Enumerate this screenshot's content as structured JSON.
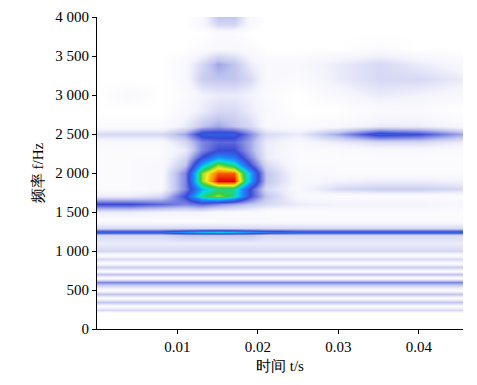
{
  "chart_data": {
    "type": "heatmap",
    "x_label": "时间 t/s",
    "y_label": "频率 f/Hz",
    "xlim": [
      0,
      0.0455
    ],
    "ylim": [
      0,
      4000
    ],
    "xticks": [
      0.01,
      0.02,
      0.03,
      0.04
    ],
    "yticks": [
      0,
      500,
      {
        "value": 1000,
        "label": "1 000"
      },
      {
        "value": 1500,
        "label": "1 500"
      },
      {
        "value": 2000,
        "label": "2 000"
      },
      {
        "value": 2500,
        "label": "2 500"
      },
      {
        "value": 3000,
        "label": "3 000"
      },
      {
        "value": 3500,
        "label": "3 500"
      },
      {
        "value": 4000,
        "label": "4 000"
      }
    ],
    "grid": false,
    "zlim": [
      0,
      10
    ],
    "x": [
      0,
      0.004,
      0.008,
      0.011,
      0.013,
      0.015,
      0.017,
      0.019,
      0.021,
      0.025,
      0.03,
      0.035,
      0.04,
      0.0455
    ],
    "y": [
      0,
      200,
      250,
      300,
      350,
      400,
      450,
      500,
      550,
      600,
      650,
      700,
      750,
      800,
      850,
      900,
      950,
      1000,
      1100,
      1200,
      1250,
      1300,
      1400,
      1500,
      1600,
      1700,
      1800,
      1900,
      2000,
      2100,
      2200,
      2300,
      2400,
      2500,
      2600,
      2800,
      3000,
      3200,
      3400,
      3600,
      3800,
      3900,
      4000
    ],
    "z": [
      [
        0,
        0,
        0,
        0,
        0,
        0,
        0,
        0,
        0,
        0,
        0,
        0,
        0,
        0
      ],
      [
        0,
        0,
        0,
        0,
        0,
        0,
        0,
        0,
        0,
        0,
        0,
        0,
        0,
        0
      ],
      [
        1.5,
        1.5,
        1.5,
        1.5,
        1.5,
        1.5,
        1.5,
        1.5,
        1.5,
        1.5,
        1.5,
        1.5,
        1.5,
        1.5
      ],
      [
        0.3,
        0.3,
        0.3,
        0.3,
        0.3,
        0.3,
        0.3,
        0.3,
        0.3,
        0.3,
        0.3,
        0.3,
        0.3,
        0.3
      ],
      [
        2,
        2,
        2,
        2,
        2,
        2,
        2,
        2,
        2,
        2,
        2,
        2,
        2,
        2
      ],
      [
        0.3,
        0.3,
        0.3,
        0.3,
        0.3,
        0.3,
        0.3,
        0.3,
        0.3,
        0.3,
        0.3,
        0.3,
        0.3,
        0.3
      ],
      [
        2,
        2,
        2,
        2,
        2,
        2,
        2,
        2,
        2,
        2,
        2,
        2,
        2,
        2
      ],
      [
        0.3,
        0.3,
        0.3,
        0.3,
        0.3,
        0.3,
        0.3,
        0.3,
        0.3,
        0.3,
        0.3,
        0.3,
        0.3,
        0.3
      ],
      [
        1.5,
        1.5,
        1.5,
        1.5,
        1.5,
        1.5,
        1.5,
        1.5,
        1.5,
        1.5,
        1.5,
        1.5,
        1.5,
        1.5
      ],
      [
        3,
        3,
        3,
        3,
        3,
        3,
        3,
        3,
        3,
        3,
        3,
        3,
        3,
        3
      ],
      [
        0.3,
        0.3,
        0.3,
        0.3,
        0.3,
        0.3,
        0.3,
        0.3,
        0.3,
        0.3,
        0.3,
        0.3,
        0.3,
        0.3
      ],
      [
        2,
        2,
        2,
        2,
        2,
        2,
        2,
        2,
        2,
        2,
        2,
        2,
        2,
        2
      ],
      [
        0.3,
        0.3,
        0.3,
        0.3,
        0.3,
        0.3,
        0.3,
        0.3,
        0.3,
        0.3,
        0.3,
        0.3,
        0.3,
        0.3
      ],
      [
        1.8,
        1.8,
        1.8,
        1.8,
        1.8,
        1.8,
        1.8,
        1.8,
        1.8,
        1.8,
        1.8,
        1.8,
        1.8,
        1.8
      ],
      [
        0.3,
        0.3,
        0.3,
        0.3,
        0.3,
        0.3,
        0.3,
        0.3,
        0.3,
        0.3,
        0.3,
        0.3,
        0.3,
        0.3
      ],
      [
        1.5,
        1.5,
        1.5,
        1.5,
        1.5,
        1.5,
        1.5,
        1.5,
        1.5,
        1.5,
        1.5,
        1.5,
        1.5,
        1.5
      ],
      [
        0.3,
        0.3,
        0.3,
        0.3,
        0.3,
        0.3,
        0.3,
        0.3,
        0.3,
        0.3,
        0.3,
        0.3,
        0.3,
        0.3
      ],
      [
        1.5,
        1.5,
        1.5,
        1.5,
        1.5,
        1.5,
        1.5,
        1.5,
        1.5,
        1.5,
        1.5,
        1.5,
        1.5,
        1.5
      ],
      [
        1,
        1,
        1,
        1,
        1,
        1,
        1,
        1,
        1,
        1,
        1,
        1,
        1,
        1
      ],
      [
        1.5,
        1.5,
        1.5,
        2,
        2,
        2,
        2,
        2,
        1.5,
        1.5,
        1.5,
        1.5,
        1.5,
        1.5
      ],
      [
        4.5,
        4.5,
        4.5,
        5.5,
        6,
        6.2,
        6,
        5.5,
        5,
        4.5,
        4.5,
        4.5,
        4.5,
        4.5
      ],
      [
        1.5,
        1.5,
        1.5,
        1.5,
        1.5,
        1.5,
        1.5,
        1.5,
        1.5,
        1.5,
        1.5,
        1.5,
        1.5,
        1.5
      ],
      [
        0.3,
        0.3,
        0.3,
        0.3,
        0.3,
        0.3,
        0.3,
        0.3,
        0.3,
        0.3,
        0.3,
        0.3,
        0.3,
        0.3
      ],
      [
        1,
        1,
        0.8,
        0.8,
        0.8,
        0.5,
        0.5,
        0.5,
        0.3,
        0.3,
        0.3,
        0.3,
        0.3,
        0.3
      ],
      [
        4,
        4,
        3.5,
        3,
        3.5,
        3,
        2.5,
        2,
        1.5,
        1,
        0.8,
        0.8,
        0.8,
        0.5
      ],
      [
        1,
        1,
        1.5,
        4,
        7,
        8,
        7,
        4,
        2,
        0.5,
        0.3,
        0.3,
        0.3,
        0.3
      ],
      [
        0.3,
        0.3,
        0.5,
        3,
        6,
        7,
        7,
        4,
        1.5,
        0.5,
        1.5,
        1.8,
        1.8,
        1.5
      ],
      [
        0.3,
        0.3,
        0.5,
        3,
        8,
        10,
        10,
        6,
        2,
        0.5,
        0.8,
        1,
        1,
        0.8
      ],
      [
        0.3,
        0.3,
        0.5,
        3,
        8,
        9.5,
        9.5,
        6,
        2,
        0.5,
        0.3,
        0.3,
        0.3,
        0.3
      ],
      [
        0.3,
        0.3,
        0.5,
        2,
        6,
        8,
        7,
        4,
        1.5,
        0.3,
        0.3,
        0.3,
        0.3,
        0.3
      ],
      [
        0.3,
        0.3,
        0.3,
        1.5,
        4,
        5.5,
        5,
        3,
        1,
        0.3,
        0.3,
        0.3,
        0.3,
        0.3
      ],
      [
        0.3,
        0.3,
        0.3,
        1,
        3,
        4,
        4,
        2.5,
        1,
        0.3,
        0.3,
        0.5,
        0.5,
        0.3
      ],
      [
        0.5,
        0.5,
        0.5,
        1.5,
        3,
        3.5,
        3.5,
        2.5,
        1,
        0.5,
        1,
        1.5,
        1.5,
        1
      ],
      [
        1.5,
        1.5,
        1.5,
        2.5,
        4.5,
        4.5,
        4.5,
        3,
        1.5,
        1,
        2.5,
        4.5,
        4,
        2.5
      ],
      [
        0.3,
        0.3,
        0.3,
        1,
        2,
        2.5,
        2,
        1.5,
        0.5,
        0.3,
        0.5,
        1,
        1,
        0.5
      ],
      [
        0,
        0,
        0,
        0.5,
        1,
        1.5,
        1.5,
        1,
        0.5,
        0,
        0,
        0.3,
        0.3,
        0
      ],
      [
        0,
        0.5,
        0,
        0.3,
        0.8,
        1,
        1,
        0.8,
        0.3,
        0,
        0.5,
        1,
        0.8,
        0.5
      ],
      [
        0,
        0,
        0,
        0.5,
        1.8,
        2,
        2,
        1.5,
        0.5,
        0.3,
        1,
        1.5,
        1.5,
        1
      ],
      [
        0,
        0,
        0,
        0.5,
        1.5,
        2.5,
        2,
        1,
        0.5,
        0.5,
        1,
        1.5,
        1,
        0.5
      ],
      [
        0,
        0,
        0,
        0,
        0.3,
        0.5,
        0.5,
        0.3,
        0,
        0,
        0,
        0.3,
        0,
        0
      ],
      [
        0,
        0,
        0,
        0,
        0,
        0.3,
        0.3,
        0,
        0,
        0,
        0,
        0,
        0,
        0
      ],
      [
        0,
        0,
        0,
        0,
        0.5,
        1.5,
        1.5,
        0.5,
        0,
        0,
        0,
        0,
        0,
        0
      ],
      [
        0,
        0,
        0,
        0,
        0.5,
        2,
        2,
        0.5,
        0,
        0,
        0,
        0,
        0,
        0
      ]
    ]
  }
}
